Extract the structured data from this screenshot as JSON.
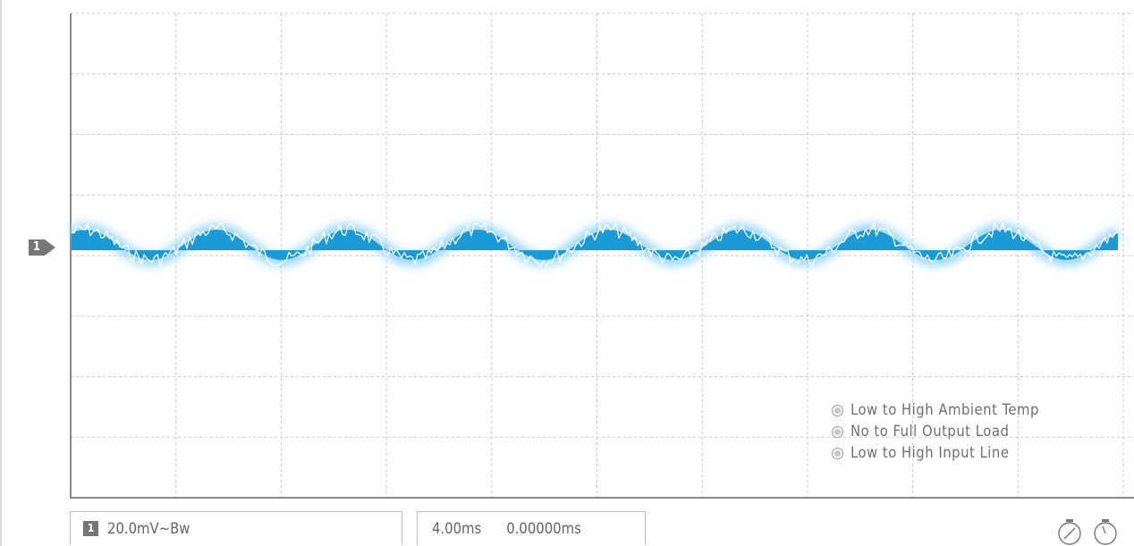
{
  "scope": {
    "channel_marker": "1",
    "grid": {
      "divisions_x": 10,
      "divisions_y": 8
    },
    "trace": {
      "channel": 1,
      "color": "#1a9ad6",
      "glow_color": "#8fd3f4",
      "cycles": 8,
      "amplitude_div": 0.25,
      "position_div": 0
    }
  },
  "legend": [
    {
      "icon": "circle-icon",
      "label": "Low to High Ambient Temp"
    },
    {
      "icon": "circle-icon",
      "label": "No to Full Output Load"
    },
    {
      "icon": "circle-icon",
      "label": "Low to High Input Line"
    }
  ],
  "status": {
    "channel_number": "1",
    "channel_scale": "20.0mV~Bw",
    "timebase": "4.00ms",
    "trigger_offset": "0.00000ms"
  },
  "tools": [
    {
      "icon": "measure-dial-icon"
    },
    {
      "icon": "stopwatch-icon"
    }
  ]
}
